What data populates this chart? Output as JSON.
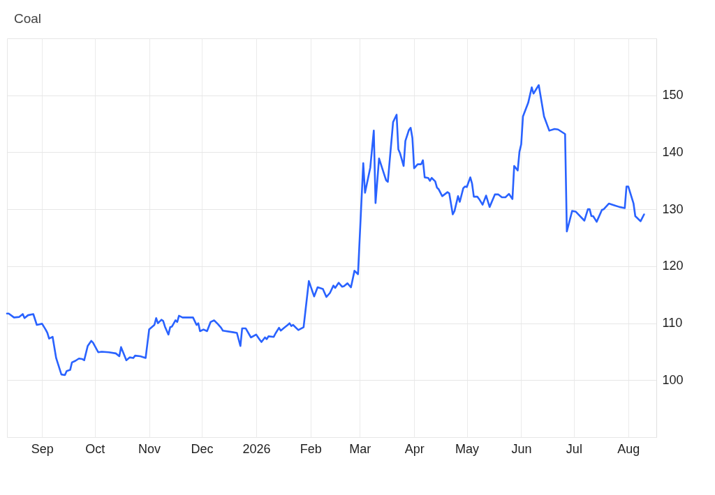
{
  "chart_data": {
    "type": "line",
    "title": "Coal",
    "x": [
      "2025-08-12",
      "2025-08-13",
      "2025-08-16",
      "2025-08-19",
      "2025-08-21",
      "2025-08-22",
      "2025-08-24",
      "2025-08-27",
      "2025-08-29",
      "2025-09-01",
      "2025-09-03",
      "2025-09-04",
      "2025-09-05",
      "2025-09-07",
      "2025-09-09",
      "2025-09-12",
      "2025-09-14",
      "2025-09-15",
      "2025-09-17",
      "2025-09-18",
      "2025-09-20",
      "2025-09-22",
      "2025-09-24",
      "2025-09-25",
      "2025-09-27",
      "2025-09-29",
      "2025-09-30",
      "2025-10-03",
      "2025-10-05",
      "2025-10-09",
      "2025-10-13",
      "2025-10-15",
      "2025-10-16",
      "2025-10-19",
      "2025-10-21",
      "2025-10-23",
      "2025-10-24",
      "2025-10-27",
      "2025-10-30",
      "2025-11-01",
      "2025-11-04",
      "2025-11-05",
      "2025-11-06",
      "2025-11-08",
      "2025-11-09",
      "2025-11-10",
      "2025-11-12",
      "2025-11-13",
      "2025-11-14",
      "2025-11-16",
      "2025-11-17",
      "2025-11-18",
      "2025-11-20",
      "2025-11-26",
      "2025-11-28",
      "2025-11-29",
      "2025-11-30",
      "2025-12-02",
      "2025-12-04",
      "2025-12-06",
      "2025-12-08",
      "2025-12-10",
      "2025-12-12",
      "2025-12-13",
      "2025-12-19",
      "2025-12-21",
      "2025-12-23",
      "2025-12-24",
      "2025-12-26",
      "2025-12-29",
      "2026-01-01",
      "2026-01-03",
      "2026-01-04",
      "2026-01-06",
      "2026-01-07",
      "2026-01-08",
      "2026-01-11",
      "2026-01-12",
      "2026-01-14",
      "2026-01-15",
      "2026-01-17",
      "2026-01-19",
      "2026-01-20",
      "2026-01-21",
      "2026-01-22",
      "2026-01-25",
      "2026-01-28",
      "2026-01-29",
      "2026-01-31",
      "2026-02-03",
      "2026-02-05",
      "2026-02-08",
      "2026-02-10",
      "2026-02-12",
      "2026-02-14",
      "2026-02-15",
      "2026-02-17",
      "2026-02-19",
      "2026-02-20",
      "2026-02-22",
      "2026-02-24",
      "2026-02-26",
      "2026-02-28",
      "2026-03-03",
      "2026-03-04",
      "2026-03-07",
      "2026-03-09",
      "2026-03-10",
      "2026-03-12",
      "2026-03-16",
      "2026-03-17",
      "2026-03-20",
      "2026-03-22",
      "2026-03-23",
      "2026-03-24",
      "2026-03-26",
      "2026-03-27",
      "2026-03-29",
      "2026-03-30",
      "2026-03-31",
      "2026-04-01",
      "2026-04-03",
      "2026-04-05",
      "2026-04-06",
      "2026-04-07",
      "2026-04-09",
      "2026-04-10",
      "2026-04-11",
      "2026-04-13",
      "2026-04-14",
      "2026-04-15",
      "2026-04-17",
      "2026-04-20",
      "2026-04-21",
      "2026-04-23",
      "2026-04-24",
      "2026-04-26",
      "2026-04-27",
      "2026-04-29",
      "2026-04-30",
      "2026-05-01",
      "2026-05-03",
      "2026-05-04",
      "2026-05-05",
      "2026-05-07",
      "2026-05-08",
      "2026-05-10",
      "2026-05-12",
      "2026-05-14",
      "2026-05-17",
      "2026-05-19",
      "2026-05-21",
      "2026-05-23",
      "2026-05-25",
      "2026-05-27",
      "2026-05-28",
      "2026-05-30",
      "2026-05-31",
      "2026-06-01",
      "2026-06-02",
      "2026-06-05",
      "2026-06-07",
      "2026-06-08",
      "2026-06-11",
      "2026-06-14",
      "2026-06-17",
      "2026-06-20",
      "2026-06-22",
      "2026-06-26",
      "2026-06-27",
      "2026-06-30",
      "2026-07-02",
      "2026-07-07",
      "2026-07-09",
      "2026-07-10",
      "2026-07-11",
      "2026-07-12",
      "2026-07-14",
      "2026-07-17",
      "2026-07-18",
      "2026-07-21",
      "2026-07-24",
      "2026-07-27",
      "2026-07-30",
      "2026-07-31",
      "2026-08-01",
      "2026-08-04",
      "2026-08-05",
      "2026-08-08",
      "2026-08-10"
    ],
    "series": [
      {
        "color": "#2962ff",
        "values": [
          111.7,
          111.7,
          111.0,
          111.1,
          111.6,
          110.9,
          111.4,
          111.6,
          109.7,
          109.9,
          108.9,
          108.3,
          107.3,
          107.6,
          103.9,
          101.0,
          100.9,
          101.6,
          101.8,
          103.1,
          103.4,
          103.8,
          103.7,
          103.5,
          106.0,
          106.9,
          106.6,
          104.9,
          105.0,
          104.9,
          104.7,
          104.2,
          105.8,
          103.5,
          104.0,
          103.9,
          104.3,
          104.2,
          103.9,
          108.9,
          109.7,
          110.9,
          110.0,
          110.6,
          110.4,
          109.4,
          108.0,
          109.3,
          109.4,
          110.5,
          110.2,
          111.3,
          111.0,
          111.0,
          109.7,
          110.0,
          108.6,
          108.9,
          108.6,
          110.2,
          110.5,
          109.9,
          109.2,
          108.7,
          108.4,
          108.3,
          106.0,
          109.1,
          109.1,
          107.5,
          108.0,
          107.1,
          106.7,
          107.5,
          107.2,
          107.7,
          107.6,
          108.2,
          109.2,
          108.7,
          109.2,
          109.7,
          110.0,
          109.5,
          109.7,
          108.8,
          109.3,
          112.0,
          117.4,
          114.7,
          116.3,
          116.0,
          114.6,
          115.3,
          116.6,
          116.2,
          117.1,
          116.4,
          116.5,
          117.0,
          116.3,
          119.2,
          118.6,
          138.1,
          132.9,
          137.3,
          143.8,
          131.1,
          138.9,
          135.1,
          134.8,
          145.3,
          146.6,
          140.5,
          139.8,
          137.6,
          142.0,
          143.9,
          144.3,
          142.5,
          137.2,
          137.9,
          137.9,
          138.6,
          135.6,
          135.5,
          135.0,
          135.5,
          134.9,
          133.8,
          133.5,
          132.3,
          133.0,
          132.8,
          129.1,
          129.7,
          132.3,
          131.3,
          133.7,
          134.0,
          133.9,
          135.6,
          134.5,
          132.2,
          132.2,
          131.8,
          130.8,
          132.4,
          130.4,
          132.6,
          132.6,
          132.1,
          132.1,
          132.7,
          131.8,
          137.6,
          136.8,
          140.1,
          141.4,
          146.3,
          148.7,
          151.4,
          150.3,
          151.8,
          146.3,
          143.8,
          144.1,
          144.0,
          143.2,
          126.1,
          129.7,
          129.6,
          128.0,
          130.0,
          130.0,
          128.8,
          128.8,
          127.8,
          129.9,
          130.0,
          131.0,
          130.7,
          130.4,
          130.2,
          134.0,
          134.0,
          131.0,
          128.8,
          127.9,
          129.1
        ]
      }
    ],
    "xlim": [
      "2025-08-12",
      "2026-08-17"
    ],
    "xticks": [
      {
        "value": "2025-09-01",
        "label": "Sep"
      },
      {
        "value": "2025-10-01",
        "label": "Oct"
      },
      {
        "value": "2025-11-01",
        "label": "Nov"
      },
      {
        "value": "2025-12-01",
        "label": "Dec"
      },
      {
        "value": "2026-01-01",
        "label": "2026"
      },
      {
        "value": "2026-02-01",
        "label": "Feb"
      },
      {
        "value": "2026-03-01",
        "label": "Mar"
      },
      {
        "value": "2026-04-01",
        "label": "Apr"
      },
      {
        "value": "2026-05-01",
        "label": "May"
      },
      {
        "value": "2026-06-01",
        "label": "Jun"
      },
      {
        "value": "2026-07-01",
        "label": "Jul"
      },
      {
        "value": "2026-08-01",
        "label": "Aug"
      }
    ],
    "ylim": [
      90,
      160
    ],
    "yticks": [
      100,
      110,
      120,
      130,
      140,
      150
    ],
    "grid": true
  }
}
